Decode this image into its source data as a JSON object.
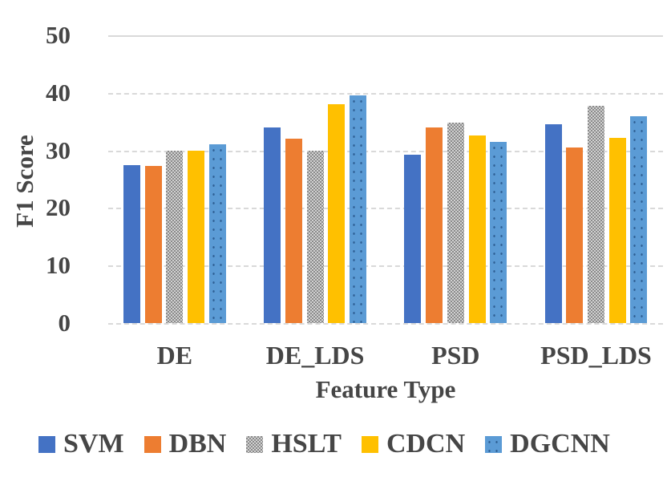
{
  "chart_data": {
    "type": "bar",
    "title": "",
    "xlabel": "Feature Type",
    "ylabel": "F1 Score",
    "categories": [
      "DE",
      "DE_LDS",
      "PSD",
      "PSD_LDS"
    ],
    "series": [
      {
        "name": "SVM",
        "color": "#4472C4",
        "pattern": "solid",
        "values": [
          27.5,
          34.0,
          29.2,
          34.5
        ]
      },
      {
        "name": "DBN",
        "color": "#ED7D31",
        "pattern": "solid",
        "values": [
          27.3,
          32.0,
          34.0,
          30.5
        ]
      },
      {
        "name": "HSLT",
        "color": "#A6A6A6",
        "pattern": "checker",
        "values": [
          30.0,
          30.0,
          34.8,
          37.8
        ]
      },
      {
        "name": "CDCN",
        "color": "#FFC000",
        "pattern": "solid",
        "values": [
          30.0,
          38.0,
          32.6,
          32.2
        ]
      },
      {
        "name": "DGCNN",
        "color": "#5B9BD5",
        "pattern": "dots",
        "values": [
          31.0,
          39.6,
          31.5,
          36.0
        ]
      }
    ],
    "y_ticks": [
      0,
      10,
      20,
      30,
      40,
      50
    ],
    "ylim": [
      0,
      50
    ],
    "grid": true,
    "legend_position": "bottom",
    "colors": {
      "axis_text": "#464646",
      "gridline": "#d9d9d9",
      "background": "#ffffff"
    }
  }
}
